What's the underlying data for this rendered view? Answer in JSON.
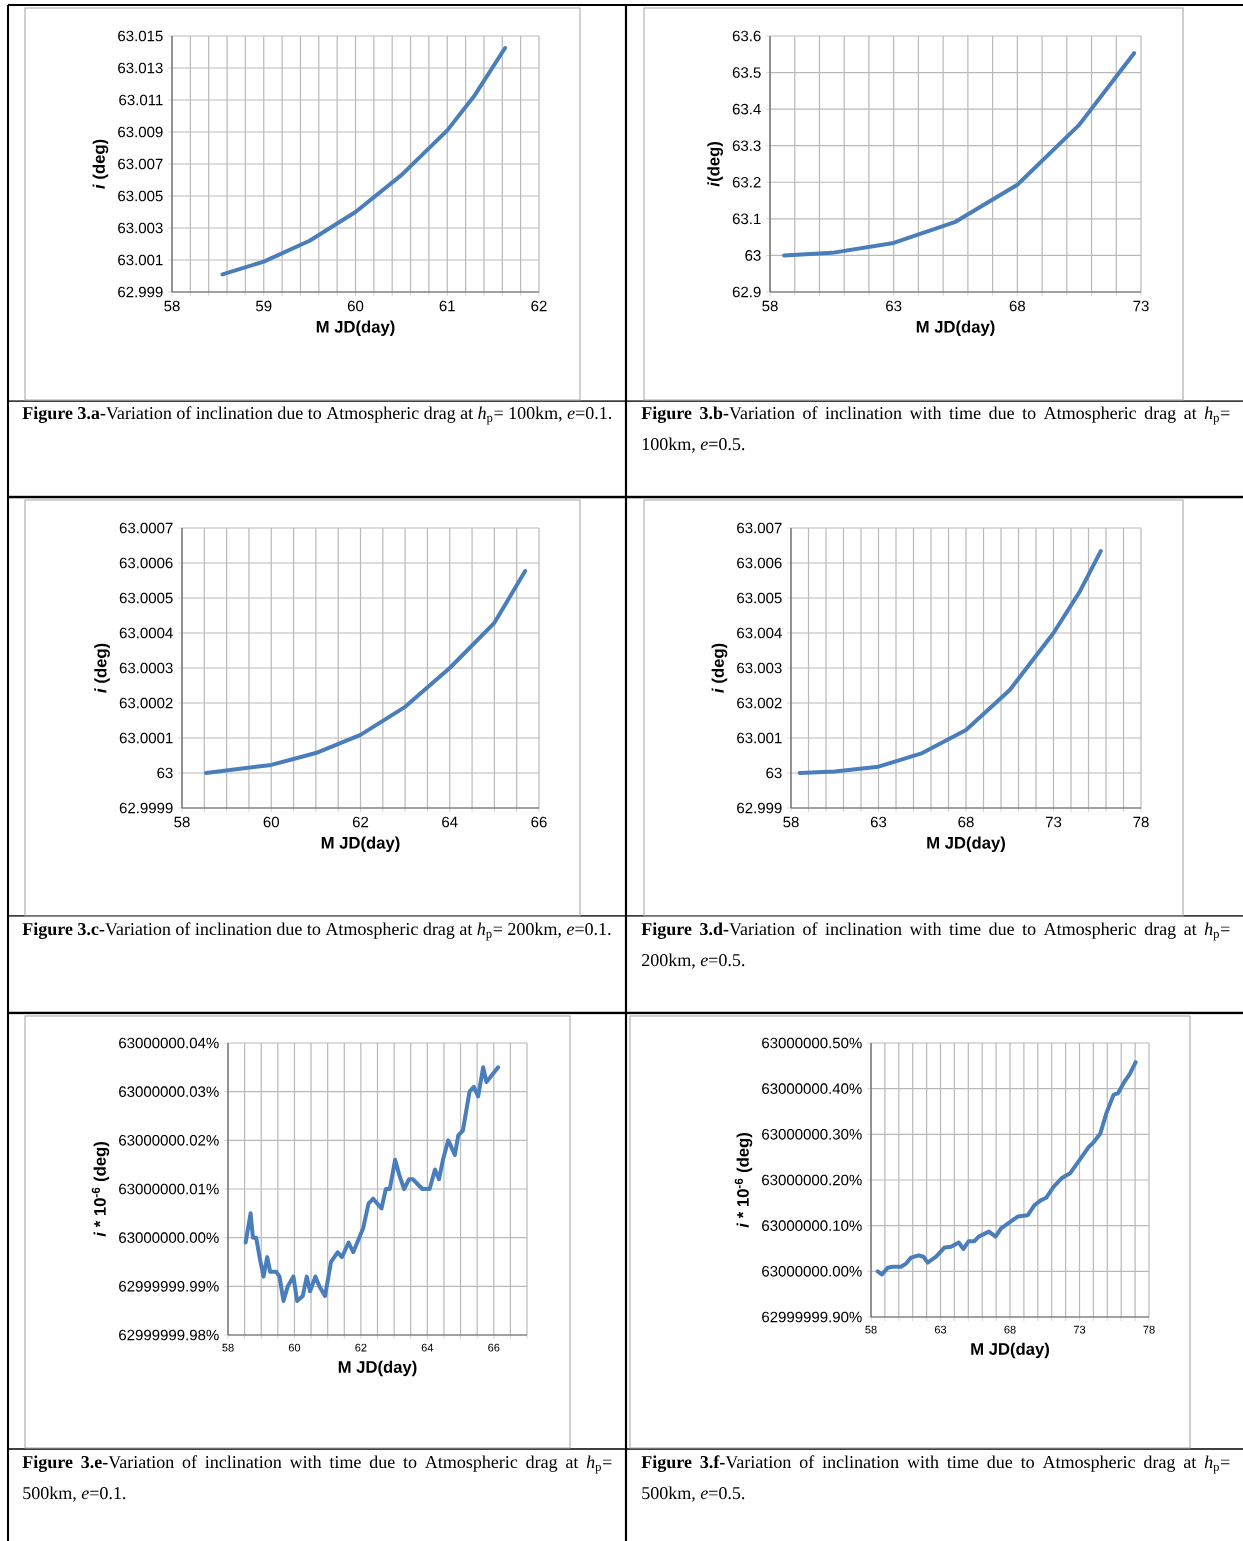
{
  "chart_data": [
    {
      "type": "line",
      "xlabel": "M JD(day)",
      "ylabel": "*i* (deg)",
      "color": "#4a7ebb",
      "grid": true,
      "xlim": [
        58,
        62
      ],
      "ylim": [
        62.999,
        63.015
      ],
      "xticks": [
        58,
        {
          "value": 58.2,
          "label": null
        },
        {
          "value": 58.4,
          "label": null
        },
        {
          "value": 58.6,
          "label": null
        },
        {
          "value": 58.8,
          "label": null
        },
        59,
        {
          "value": 59.2,
          "label": null
        },
        {
          "value": 59.4,
          "label": null
        },
        {
          "value": 59.6,
          "label": null
        },
        {
          "value": 59.8,
          "label": null
        },
        60,
        {
          "value": 60.2,
          "label": null
        },
        {
          "value": 60.4,
          "label": null
        },
        {
          "value": 60.6,
          "label": null
        },
        {
          "value": 60.8,
          "label": null
        },
        61,
        {
          "value": 61.2,
          "label": null
        },
        {
          "value": 61.4,
          "label": null
        },
        {
          "value": 61.6,
          "label": null
        },
        {
          "value": 61.8,
          "label": null
        },
        62
      ],
      "yticks": [
        62.999,
        63.001,
        63.003,
        63.005,
        63.007,
        63.009,
        63.011,
        63.013,
        63.015
      ],
      "x": [
        58.55,
        59,
        59.5,
        60,
        60.5,
        61,
        61.3,
        61.63
      ],
      "values": [
        63.0001,
        63.0009,
        63.0022,
        63.004,
        63.0063,
        63.0091,
        63.0113,
        63.01425
      ],
      "annotations": [
        "**Figure 3.a-**Variation of inclination due to Atmospheric drag at *h*$_{p}$= 100km, *e*=0.1."
      ]
    },
    {
      "type": "line",
      "xlabel": "M JD(day)",
      "ylabel": "*i*(deg)",
      "color": "#4a7ebb",
      "grid": true,
      "xlim": [
        58,
        73
      ],
      "ylim": [
        62.9,
        63.6
      ],
      "xticks": [
        58,
        {
          "value": 59,
          "label": null
        },
        {
          "value": 60,
          "label": null
        },
        {
          "value": 61,
          "label": null
        },
        {
          "value": 62,
          "label": null
        },
        63,
        {
          "value": 64,
          "label": null
        },
        {
          "value": 65,
          "label": null
        },
        {
          "value": 66,
          "label": null
        },
        {
          "value": 67,
          "label": null
        },
        68,
        {
          "value": 69,
          "label": null
        },
        {
          "value": 70,
          "label": null
        },
        {
          "value": 71,
          "label": null
        },
        {
          "value": 72,
          "label": null
        },
        73
      ],
      "yticks": [
        62.9,
        63,
        63.1,
        63.2,
        63.3,
        63.4,
        63.5,
        63.6
      ],
      "x": [
        58.57,
        60.5,
        63,
        65.5,
        68,
        70.5,
        72,
        72.72
      ],
      "values": [
        63.0,
        63.007,
        63.034,
        63.092,
        63.193,
        63.357,
        63.489,
        63.553
      ],
      "annotations": [
        "**Figure 3.b-**Variation of inclination with time due to Atmospheric drag at *h*$_{p}$= 100km, *e*=0.5."
      ]
    },
    {
      "type": "line",
      "xlabel": "M JD(day)",
      "ylabel": "*i* (deg)",
      "color": "#4a7ebb",
      "grid": true,
      "xlim": [
        58,
        66
      ],
      "ylim": [
        62.9999,
        63.0007
      ],
      "xticks": [
        58,
        {
          "value": 58.5,
          "label": null
        },
        {
          "value": 59,
          "label": null
        },
        {
          "value": 59.5,
          "label": null
        },
        60,
        {
          "value": 60.5,
          "label": null
        },
        {
          "value": 61,
          "label": null
        },
        {
          "value": 61.5,
          "label": null
        },
        62,
        {
          "value": 62.5,
          "label": null
        },
        {
          "value": 63,
          "label": null
        },
        {
          "value": 63.5,
          "label": null
        },
        64,
        {
          "value": 64.5,
          "label": null
        },
        {
          "value": 65,
          "label": null
        },
        {
          "value": 65.5,
          "label": null
        },
        66
      ],
      "yticks": [
        62.9999,
        63,
        63.0001,
        63.0002,
        63.0003,
        63.0004,
        63.0005,
        63.0006,
        63.0007
      ],
      "x": [
        58.54,
        60,
        61,
        62,
        63,
        64,
        65,
        65.69
      ],
      "values": [
        63.0,
        63.000023,
        63.000057,
        63.000109,
        63.000189,
        63.0003,
        63.000429,
        63.000577
      ],
      "annotations": [
        "**Figure 3.c-**Variation of inclination due to Atmospheric drag at *h*$_{p}$= 200km, *e*=0.1."
      ]
    },
    {
      "type": "line",
      "xlabel": "M JD(day)",
      "ylabel": "*i* (deg)",
      "color": "#4a7ebb",
      "grid": true,
      "xlim": [
        58,
        78
      ],
      "ylim": [
        62.999,
        63.007
      ],
      "xticks": [
        58,
        {
          "value": 59,
          "label": null
        },
        {
          "value": 60,
          "label": null
        },
        {
          "value": 61,
          "label": null
        },
        {
          "value": 62,
          "label": null
        },
        63,
        {
          "value": 64,
          "label": null
        },
        {
          "value": 65,
          "label": null
        },
        {
          "value": 66,
          "label": null
        },
        {
          "value": 67,
          "label": null
        },
        68,
        {
          "value": 69,
          "label": null
        },
        {
          "value": 70,
          "label": null
        },
        {
          "value": 71,
          "label": null
        },
        {
          "value": 72,
          "label": null
        },
        73,
        {
          "value": 74,
          "label": null
        },
        {
          "value": 75,
          "label": null
        },
        {
          "value": 76,
          "label": null
        },
        {
          "value": 77,
          "label": null
        },
        78
      ],
      "yticks": [
        62.999,
        63,
        63.001,
        63.002,
        63.003,
        63.004,
        63.005,
        63.006,
        63.007
      ],
      "x": [
        58.5,
        60.5,
        63,
        65.5,
        68,
        70.5,
        73,
        74.5,
        75.7
      ],
      "values": [
        63.0,
        63.00004,
        63.00018,
        63.00057,
        63.00123,
        63.00237,
        63.004,
        63.00518,
        63.00634
      ],
      "annotations": [
        "**Figure 3.d-**Variation of inclination with time due to Atmospheric drag at *h*$_{p}$= 200km, *e*=0.5."
      ]
    },
    {
      "type": "line",
      "xlabel": "M JD(day)",
      "ylabel": "*i* * 10$^{-6}$ (deg)",
      "color": "#4a7ebb",
      "grid": true,
      "xlim": [
        58,
        67
      ],
      "ylim": [
        62999999.98,
        63000000.04
      ],
      "xticks": [
        58,
        {
          "value": 58.5,
          "label": null
        },
        {
          "value": 59,
          "label": null
        },
        {
          "value": 59.5,
          "label": null
        },
        60,
        {
          "value": 60.5,
          "label": null
        },
        {
          "value": 61,
          "label": null
        },
        {
          "value": 61.5,
          "label": null
        },
        62,
        {
          "value": 62.5,
          "label": null
        },
        {
          "value": 63,
          "label": null
        },
        {
          "value": 63.5,
          "label": null
        },
        64,
        {
          "value": 64.5,
          "label": null
        },
        {
          "value": 65,
          "label": null
        },
        {
          "value": 65.5,
          "label": null
        },
        66,
        {
          "value": 66.5,
          "label": null
        },
        {
          "value": 67,
          "label": null
        }
      ],
      "yticks": [
        {
          "value": 62999999.98,
          "label": "62999999.98%"
        },
        {
          "value": 62999999.99,
          "label": "62999999.99%"
        },
        {
          "value": 63000000.0,
          "label": "63000000.00%"
        },
        {
          "value": 63000000.01,
          "label": "63000000.01%"
        },
        {
          "value": 63000000.02,
          "label": "63000000.02%"
        },
        {
          "value": 63000000.03,
          "label": "63000000.03%"
        },
        {
          "value": 63000000.04,
          "label": "63000000.04%"
        }
      ],
      "x": [
        58.53,
        58.68,
        58.75,
        58.85,
        58.95,
        59.07,
        59.18,
        59.27,
        59.45,
        59.55,
        59.67,
        59.8,
        59.97,
        60.08,
        60.25,
        60.37,
        60.47,
        60.63,
        60.75,
        60.92,
        61.1,
        61.3,
        61.43,
        61.63,
        61.77,
        61.95,
        62.07,
        62.23,
        62.37,
        62.62,
        62.75,
        62.87,
        63.03,
        63.15,
        63.3,
        63.45,
        63.57,
        63.85,
        64.07,
        64.23,
        64.35,
        64.47,
        64.63,
        64.83,
        64.93,
        65.07,
        65.27,
        65.4,
        65.53,
        65.68,
        65.78,
        65.9,
        66.13
      ],
      "values": [
        62999999.999,
        63000000.005,
        63000000.0,
        63000000.0,
        62999999.996,
        62999999.992,
        62999999.996,
        62999999.993,
        62999999.993,
        62999999.992,
        62999999.987,
        62999999.99,
        62999999.992,
        62999999.987,
        62999999.988,
        62999999.992,
        62999999.989,
        62999999.992,
        62999999.99,
        62999999.988,
        62999999.995,
        62999999.997,
        62999999.996,
        62999999.999,
        62999999.997,
        63000000.0,
        63000000.002,
        63000000.007,
        63000000.008,
        63000000.006,
        63000000.01,
        63000000.01,
        63000000.016,
        63000000.013,
        63000000.01,
        63000000.012,
        63000000.012,
        63000000.01,
        63000000.01,
        63000000.014,
        63000000.012,
        63000000.016,
        63000000.02,
        63000000.017,
        63000000.021,
        63000000.022,
        63000000.03,
        63000000.031,
        63000000.029,
        63000000.035,
        63000000.032,
        63000000.033,
        63000000.035
      ],
      "annotations": [
        "**Figure 3.e-**Variation of inclination with time due to Atmospheric drag at *h*$_{p}$= 500km, *e*=0.1."
      ]
    },
    {
      "type": "line",
      "xlabel": "M JD(day)",
      "ylabel": "*i* * 10$^{-6}$ (deg)",
      "color": "#4a7ebb",
      "grid": true,
      "xlim": [
        58,
        78
      ],
      "ylim": [
        62999999.9,
        63000000.5
      ],
      "xticks": [
        58,
        {
          "value": 59,
          "label": null
        },
        {
          "value": 60,
          "label": null
        },
        {
          "value": 61,
          "label": null
        },
        {
          "value": 62,
          "label": null
        },
        63,
        {
          "value": 64,
          "label": null
        },
        {
          "value": 65,
          "label": null
        },
        {
          "value": 66,
          "label": null
        },
        {
          "value": 67,
          "label": null
        },
        68,
        {
          "value": 69,
          "label": null
        },
        {
          "value": 70,
          "label": null
        },
        {
          "value": 71,
          "label": null
        },
        {
          "value": 72,
          "label": null
        },
        73,
        {
          "value": 74,
          "label": null
        },
        {
          "value": 75,
          "label": null
        },
        {
          "value": 76,
          "label": null
        },
        {
          "value": 77,
          "label": null
        },
        78
      ],
      "yticks": [
        {
          "value": 62999999.9,
          "label": "62999999.90%"
        },
        {
          "value": 63000000.0,
          "label": "63000000.00%"
        },
        {
          "value": 63000000.1,
          "label": "63000000.10%"
        },
        {
          "value": 63000000.2,
          "label": "63000000.20%"
        },
        {
          "value": 63000000.3,
          "label": "63000000.30%"
        },
        {
          "value": 63000000.4,
          "label": "63000000.40%"
        },
        {
          "value": 63000000.5,
          "label": "63000000.50%"
        }
      ],
      "x": [
        58.48,
        58.79,
        59.2,
        59.56,
        60.16,
        60.52,
        60.88,
        61.43,
        61.77,
        62.08,
        62.68,
        63.28,
        63.76,
        64.31,
        64.65,
        65.03,
        65.44,
        65.75,
        66.48,
        66.96,
        67.36,
        67.92,
        68.56,
        69.28,
        69.76,
        70.24,
        70.6,
        71.13,
        71.76,
        72.33,
        73.01,
        73.68,
        73.97,
        74.5,
        74.93,
        75.46,
        75.77,
        76.25,
        76.61,
        77.04
      ],
      "values": [
        63000000.0,
        62999999.993,
        63000000.008,
        63000000.01,
        63000000.01,
        63000000.017,
        63000000.03,
        63000000.035,
        63000000.032,
        63000000.019,
        63000000.032,
        63000000.052,
        63000000.054,
        63000000.063,
        63000000.049,
        63000000.066,
        63000000.066,
        63000000.076,
        63000000.087,
        63000000.076,
        63000000.094,
        63000000.106,
        63000000.12,
        63000000.123,
        63000000.145,
        63000000.156,
        63000000.161,
        63000000.185,
        63000000.205,
        63000000.215,
        63000000.244,
        63000000.273,
        63000000.281,
        63000000.302,
        63000000.346,
        63000000.387,
        63000000.39,
        63000000.416,
        63000000.432,
        63000000.458
      ],
      "annotations": [
        "**Figure 3.f-**Variation of inclination with time due to Atmospheric drag at *h*$_{p}$= 500km, *e*=0.5."
      ]
    }
  ]
}
